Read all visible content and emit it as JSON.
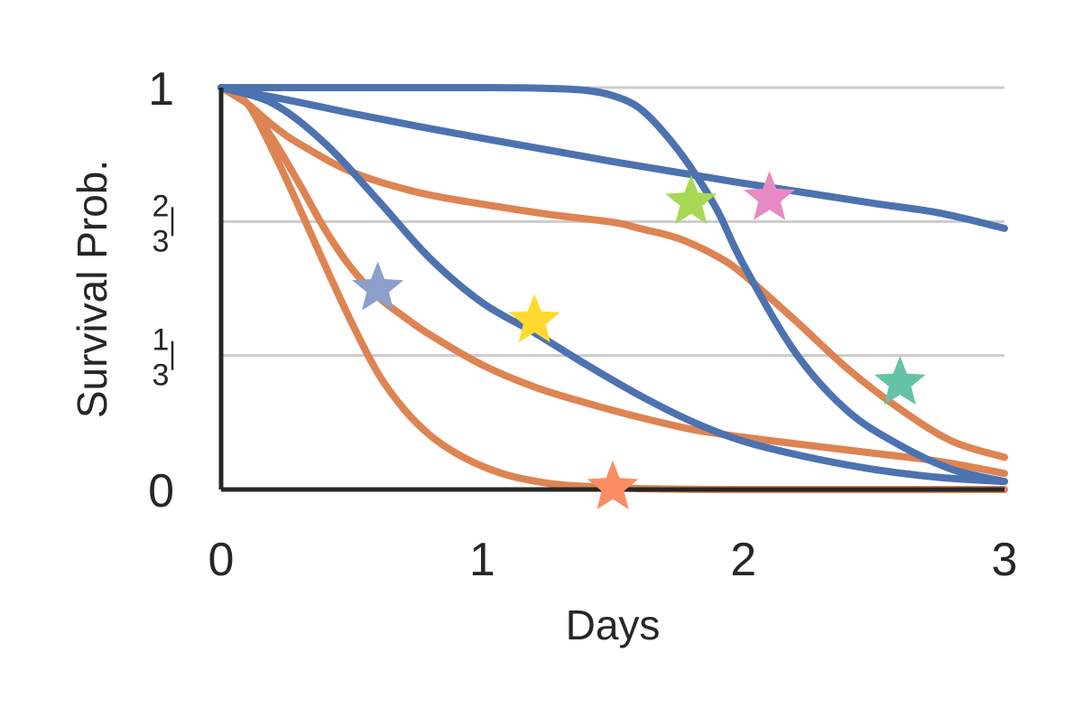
{
  "chart_data": {
    "type": "line",
    "title": "",
    "xlabel": "Days",
    "ylabel": "Survival Prob.",
    "xlim": [
      0,
      3
    ],
    "ylim": [
      0,
      1
    ],
    "grid": true,
    "legend": "none",
    "x_ticks": [
      {
        "value": 0,
        "label": "0"
      },
      {
        "value": 1,
        "label": "1"
      },
      {
        "value": 2,
        "label": "2"
      },
      {
        "value": 3,
        "label": "3"
      }
    ],
    "y_ticks": [
      {
        "value": 0,
        "label": "0",
        "fraction": false
      },
      {
        "value": 0.3333,
        "label": "1/3",
        "fraction": true,
        "num": "1",
        "den": "3"
      },
      {
        "value": 0.6667,
        "label": "2/3",
        "fraction": true,
        "num": "2",
        "den": "3"
      },
      {
        "value": 1,
        "label": "1",
        "fraction": false
      }
    ],
    "colors": {
      "blue": "#4C72B0",
      "orange": "#DD8452",
      "grid": "#CCCCCC",
      "axis": "#262626"
    },
    "series": [
      {
        "color": "blue",
        "x": [
          0,
          0.25,
          0.5,
          0.75,
          1,
          1.25,
          1.5,
          1.75,
          2,
          2.25,
          2.5,
          2.75,
          3
        ],
        "y": [
          1,
          0.97,
          0.936,
          0.904,
          0.874,
          0.845,
          0.816,
          0.789,
          0.762,
          0.737,
          0.712,
          0.688,
          0.65
        ]
      },
      {
        "color": "blue",
        "x": [
          0,
          1,
          1.25,
          1.4,
          1.5,
          1.6,
          1.7,
          1.8,
          1.9,
          2,
          2.2,
          2.4,
          2.6,
          2.8,
          3
        ],
        "y": [
          1,
          1,
          0.998,
          0.993,
          0.98,
          0.95,
          0.885,
          0.8,
          0.695,
          0.56,
          0.34,
          0.195,
          0.11,
          0.05,
          0.02
        ]
      },
      {
        "color": "blue",
        "x": [
          0,
          0.2,
          0.4,
          0.6,
          0.8,
          1,
          1.2,
          1.4,
          1.6,
          1.8,
          2,
          2.25,
          2.5,
          2.75,
          3
        ],
        "y": [
          1,
          0.96,
          0.86,
          0.72,
          0.575,
          0.465,
          0.39,
          0.31,
          0.235,
          0.17,
          0.12,
          0.08,
          0.05,
          0.03,
          0.02
        ]
      },
      {
        "color": "orange",
        "x": [
          0,
          0.1,
          0.2,
          0.3,
          0.4,
          0.5,
          0.6,
          0.7,
          0.8,
          0.9,
          1,
          1.1,
          1.2,
          1.3,
          1.5,
          1.75,
          2,
          2.5,
          3
        ],
        "y": [
          1,
          0.96,
          0.84,
          0.7,
          0.555,
          0.415,
          0.29,
          0.2,
          0.135,
          0.09,
          0.058,
          0.035,
          0.021,
          0.012,
          0.004,
          0.001,
          0,
          0,
          0
        ]
      },
      {
        "color": "orange",
        "x": [
          0,
          0.1,
          0.2,
          0.3,
          0.4,
          0.5,
          0.6,
          0.7,
          0.8,
          1,
          1.2,
          1.4,
          1.6,
          1.8,
          2,
          2.25,
          2.5,
          2.75,
          3
        ],
        "y": [
          1,
          0.96,
          0.87,
          0.76,
          0.645,
          0.55,
          0.48,
          0.43,
          0.385,
          0.31,
          0.255,
          0.215,
          0.18,
          0.15,
          0.13,
          0.11,
          0.09,
          0.07,
          0.04
        ]
      },
      {
        "color": "orange",
        "x": [
          0,
          0.1,
          0.2,
          0.3,
          0.5,
          0.75,
          1,
          1.25,
          1.5,
          1.6,
          1.75,
          1.9,
          2,
          2.2,
          2.4,
          2.6,
          2.8,
          3
        ],
        "y": [
          1,
          0.96,
          0.905,
          0.86,
          0.79,
          0.74,
          0.71,
          0.685,
          0.665,
          0.65,
          0.625,
          0.58,
          0.535,
          0.42,
          0.3,
          0.2,
          0.12,
          0.08
        ]
      }
    ],
    "markers": [
      {
        "x": 0.6,
        "y": 0.5,
        "color": "#8DA0CB"
      },
      {
        "x": 1.2,
        "y": 0.42,
        "color": "#FFD92F"
      },
      {
        "x": 1.8,
        "y": 0.715,
        "color": "#A6D854"
      },
      {
        "x": 2.1,
        "y": 0.725,
        "color": "#E78AC3"
      },
      {
        "x": 2.6,
        "y": 0.265,
        "color": "#66C2A5"
      },
      {
        "x": 1.5,
        "y": 0.005,
        "color": "#FC8D62"
      }
    ]
  }
}
